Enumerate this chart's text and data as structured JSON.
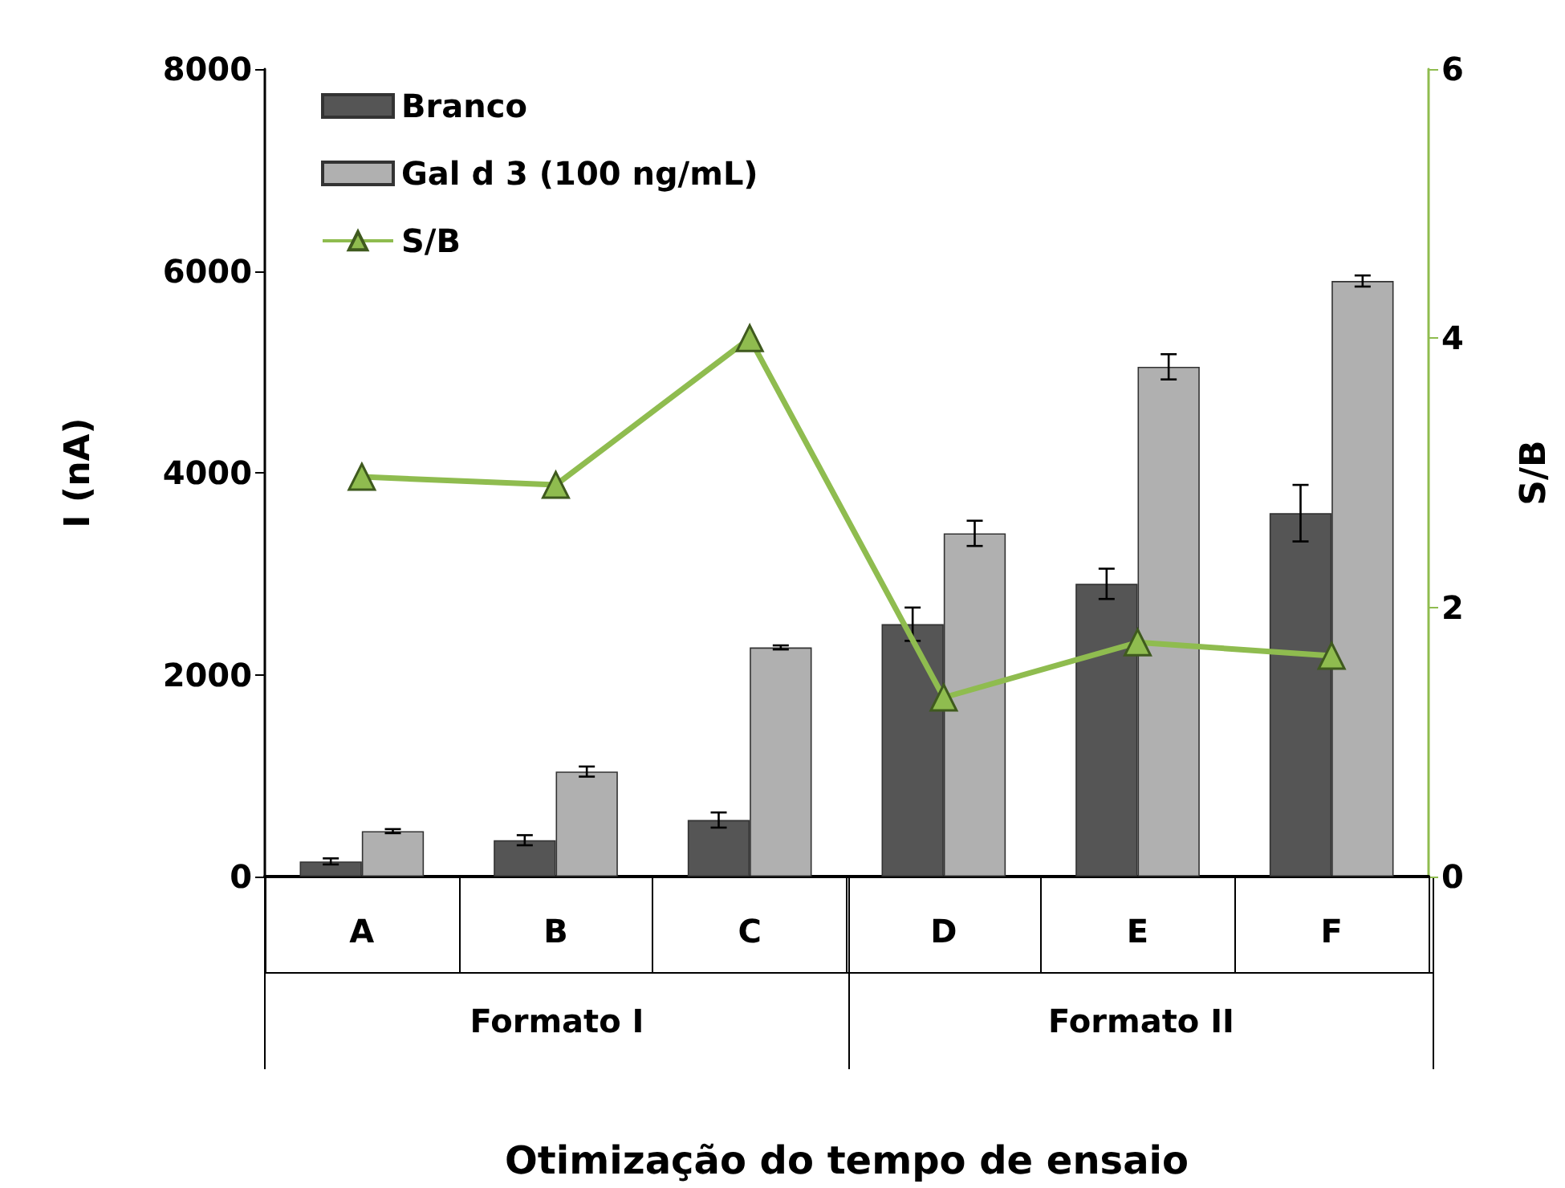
{
  "chart_data": {
    "type": "bar",
    "xlabel": "Otimização do tempo de ensaio",
    "ylabel": "I (nA)",
    "y2label": "S/B",
    "categories": [
      "A",
      "B",
      "C",
      "D",
      "E",
      "F"
    ],
    "series": [
      {
        "name": "Branco",
        "color": "#555555",
        "values": [
          150,
          360,
          560,
          2500,
          2900,
          3600
        ],
        "errors": [
          30,
          50,
          75,
          165,
          150,
          280
        ]
      },
      {
        "name": "Gal d 3 (100 ng/mL)",
        "color": "#b0b0b0",
        "values": [
          450,
          1040,
          2270,
          3400,
          5050,
          5900
        ],
        "errors": [
          20,
          50,
          20,
          125,
          125,
          55
        ]
      },
      {
        "name": "S/B",
        "type": "line",
        "axis": "y2",
        "color": "#8fbc4f",
        "marker": "triangle",
        "values": [
          2.97,
          2.91,
          4.0,
          1.33,
          1.74,
          1.64
        ]
      }
    ],
    "ylim": [
      0,
      8000
    ],
    "yticks": [
      0,
      2000,
      4000,
      6000,
      8000
    ],
    "y2lim": [
      0,
      6
    ],
    "y2ticks": [
      0,
      2,
      4,
      6
    ],
    "annotations": [
      "Formato I",
      "Formato II"
    ],
    "grid": false,
    "legend": "top left"
  }
}
